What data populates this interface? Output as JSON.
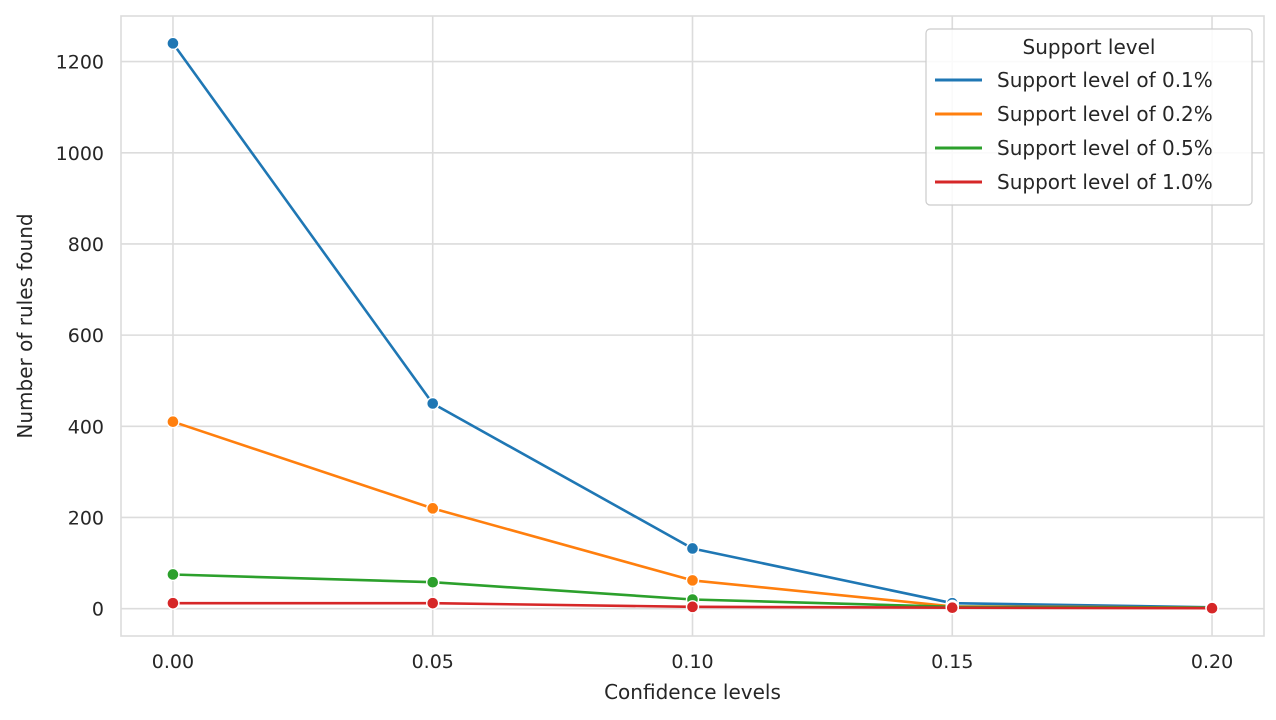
{
  "chart_data": {
    "type": "line",
    "title": "",
    "xlabel": "Confidence levels",
    "ylabel": "Number of rules found",
    "x": [
      0.0,
      0.05,
      0.1,
      0.15,
      0.2
    ],
    "x_ticks": [
      "0.00",
      "0.05",
      "0.10",
      "0.15",
      "0.20"
    ],
    "y_ticks": [
      "0",
      "200",
      "400",
      "600",
      "800",
      "1000",
      "1200"
    ],
    "xlim": [
      -0.01,
      0.21
    ],
    "ylim": [
      -60,
      1300
    ],
    "grid": true,
    "legend": {
      "title": "Support level",
      "placement": "top-right"
    },
    "series": [
      {
        "name": "Support level of 0.1%",
        "color": "#1f77b4",
        "values": [
          1240,
          450,
          132,
          12,
          3
        ]
      },
      {
        "name": "Support level of 0.2%",
        "color": "#ff7f0e",
        "values": [
          410,
          220,
          62,
          5,
          2
        ]
      },
      {
        "name": "Support level of 0.5%",
        "color": "#2ca02c",
        "values": [
          75,
          58,
          20,
          4,
          2
        ]
      },
      {
        "name": "Support level of 1.0%",
        "color": "#d62728",
        "values": [
          12,
          12,
          4,
          2,
          1
        ]
      }
    ]
  }
}
